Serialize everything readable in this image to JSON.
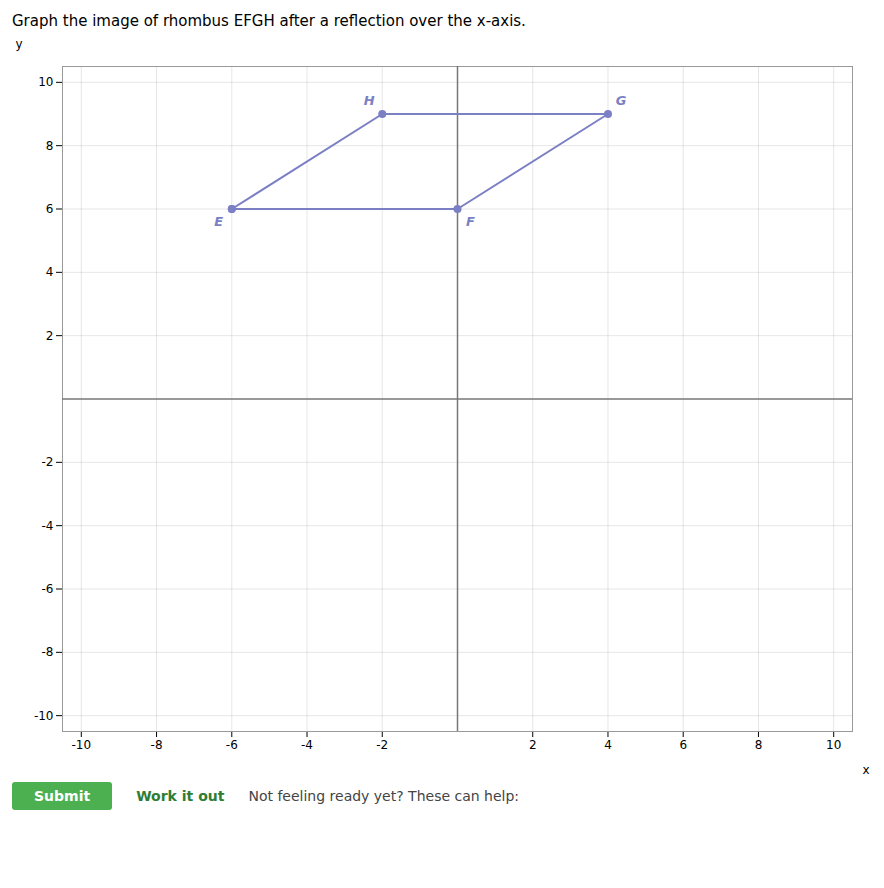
{
  "chart_data": {
    "type": "line",
    "title": "Graph the image of rhombus EFGH after a reflection over the x-axis.",
    "x_label": "x",
    "y_label": "y",
    "x": [
      -6,
      -2,
      4,
      0,
      -6
    ],
    "values": [
      6,
      9,
      9,
      6,
      6
    ],
    "color": "#7B7FC4",
    "marker": "o",
    "xlim": [
      -10.5,
      10.5
    ],
    "ylim": [
      -10.5,
      10.5
    ],
    "xticks": [
      -10,
      -8,
      -6,
      -4,
      -2,
      2,
      4,
      6,
      8,
      10
    ],
    "yticks": [
      -10,
      -8,
      -6,
      -4,
      -2,
      2,
      4,
      6,
      8,
      10
    ],
    "grid": true,
    "annotations": [
      {
        "text": "E",
        "x": -6,
        "y": 6
      },
      {
        "text": "F",
        "x": 0,
        "y": 6
      },
      {
        "text": "G",
        "x": 4,
        "y": 9
      },
      {
        "text": "H",
        "x": -2,
        "y": 9
      },
      {
        "text": "Submit"
      },
      {
        "text": "Work it out"
      },
      {
        "text": "Not feeling ready yet? These can help:"
      }
    ]
  }
}
